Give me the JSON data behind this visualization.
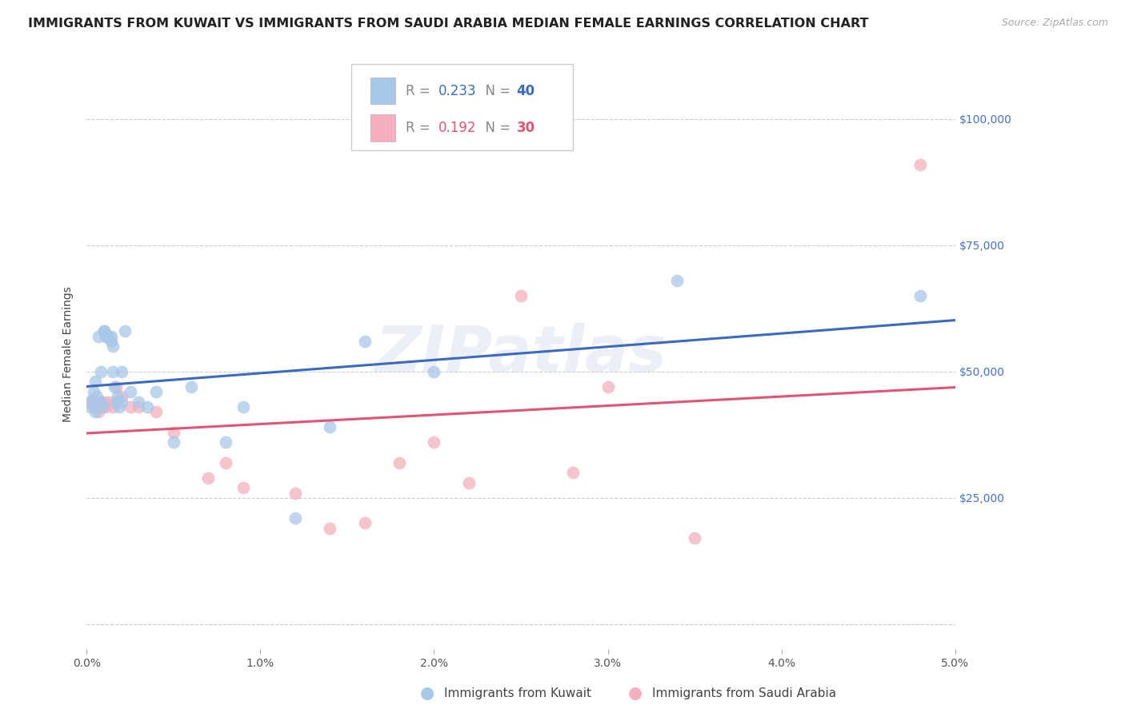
{
  "title": "IMMIGRANTS FROM KUWAIT VS IMMIGRANTS FROM SAUDI ARABIA MEDIAN FEMALE EARNINGS CORRELATION CHART",
  "source": "Source: ZipAtlas.com",
  "ylabel": "Median Female Earnings",
  "xlim": [
    0.0,
    0.05
  ],
  "ylim": [
    -5000,
    112000
  ],
  "yticks": [
    0,
    25000,
    50000,
    75000,
    100000
  ],
  "ytick_labels": [
    "",
    "$25,000",
    "$50,000",
    "$75,000",
    "$100,000"
  ],
  "xtick_labels": [
    "0.0%",
    "1.0%",
    "2.0%",
    "3.0%",
    "4.0%",
    "5.0%"
  ],
  "xticks": [
    0.0,
    0.01,
    0.02,
    0.03,
    0.04,
    0.05
  ],
  "watermark": "ZIPatlas",
  "kuwait_color": "#a8c8e8",
  "saudi_color": "#f4b0c0",
  "kuwait_line_color": "#3a6bbf",
  "saudi_line_color": "#e05575",
  "kuwait_R": "0.233",
  "kuwait_N": "40",
  "saudi_R": "0.192",
  "saudi_N": "30",
  "kuwait_label": "Immigrants from Kuwait",
  "saudi_label": "Immigrants from Saudi Arabia",
  "kuwait_x": [
    0.0002,
    0.0003,
    0.0004,
    0.0005,
    0.0005,
    0.0006,
    0.0007,
    0.0008,
    0.0008,
    0.0009,
    0.001,
    0.001,
    0.0011,
    0.0012,
    0.0013,
    0.0014,
    0.0014,
    0.0015,
    0.0015,
    0.0016,
    0.0017,
    0.0018,
    0.0019,
    0.002,
    0.002,
    0.0022,
    0.0025,
    0.003,
    0.0035,
    0.004,
    0.005,
    0.006,
    0.008,
    0.009,
    0.012,
    0.014,
    0.016,
    0.02,
    0.034,
    0.048
  ],
  "kuwait_y": [
    43000,
    44500,
    46000,
    42000,
    48000,
    45000,
    57000,
    50000,
    44000,
    43000,
    58000,
    58000,
    57000,
    57000,
    57000,
    57000,
    56000,
    55000,
    50000,
    47000,
    44000,
    45000,
    43000,
    50000,
    44000,
    58000,
    46000,
    44000,
    43000,
    46000,
    36000,
    47000,
    36000,
    43000,
    21000,
    39000,
    56000,
    50000,
    68000,
    65000
  ],
  "saudi_x": [
    0.0002,
    0.0003,
    0.0005,
    0.0006,
    0.0007,
    0.0008,
    0.001,
    0.0011,
    0.0013,
    0.0015,
    0.0017,
    0.002,
    0.0025,
    0.003,
    0.004,
    0.005,
    0.007,
    0.008,
    0.009,
    0.012,
    0.014,
    0.016,
    0.018,
    0.02,
    0.022,
    0.025,
    0.028,
    0.03,
    0.035,
    0.048
  ],
  "saudi_y": [
    44000,
    43500,
    43000,
    44000,
    42000,
    44000,
    44000,
    43000,
    44000,
    43000,
    47000,
    45000,
    43000,
    43000,
    42000,
    38000,
    29000,
    32000,
    27000,
    26000,
    19000,
    20000,
    32000,
    36000,
    28000,
    65000,
    30000,
    47000,
    17000,
    91000
  ],
  "background_color": "#ffffff",
  "title_fontsize": 11.5,
  "axis_label_fontsize": 10,
  "tick_fontsize": 10,
  "legend_fontsize": 12,
  "source_fontsize": 9,
  "marker_size": 130
}
